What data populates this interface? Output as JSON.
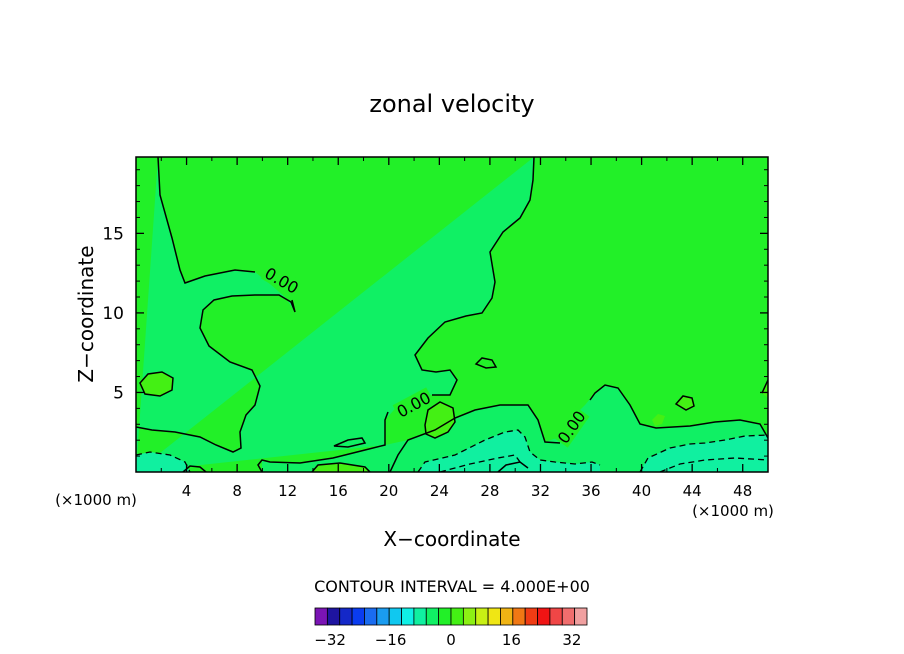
{
  "chart_data": {
    "type": "heatmap",
    "title": "zonal velocity",
    "xlabel": "X−coordinate",
    "ylabel": "Z−coordinate",
    "x_unit": "(×1000 m)",
    "z_unit": "(×1000 m)",
    "xlim": [
      0,
      50
    ],
    "ylim": [
      0,
      19.8
    ],
    "x_ticks": [
      4,
      8,
      12,
      16,
      20,
      24,
      28,
      32,
      36,
      40,
      44,
      48
    ],
    "x_tick_labels": [
      "4",
      "8",
      "12",
      "16",
      "20",
      "24",
      "28",
      "32",
      "36",
      "40",
      "44",
      "48"
    ],
    "y_ticks": [
      5,
      10,
      15
    ],
    "y_tick_labels": [
      "5",
      "10",
      "15"
    ],
    "contour_label": "0.00",
    "contour_label_positions": [
      {
        "x": 11.5,
        "z": 12.0
      },
      {
        "x": 22.0,
        "z": 4.2
      },
      {
        "x": 34.5,
        "z": 2.8
      }
    ],
    "contour_interval_text": "CONTOUR INTERVAL = 4.000E+00",
    "contour_interval": 4.0,
    "colorbar": {
      "range": [
        -36,
        36
      ],
      "step": 4,
      "colors": [
        "#7a14b4",
        "#1e14a0",
        "#1428c8",
        "#0a3cf0",
        "#1a6cf0",
        "#1a9cf0",
        "#10c8f0",
        "#10f0e6",
        "#10f0a0",
        "#10f064",
        "#22f028",
        "#44f014",
        "#8cf014",
        "#c8f014",
        "#f0e614",
        "#f0b414",
        "#f07814",
        "#f03c14",
        "#f01414",
        "#f04646",
        "#f06e6e",
        "#f0a0a0"
      ],
      "tick_values": [
        -32,
        -16,
        0,
        16,
        32
      ],
      "tick_labels": [
        "−32",
        "−16",
        "0",
        "16",
        "32"
      ]
    },
    "fill_colors": {
      "background_0_to_4": "#22f028",
      "band_0_to_minus4": "#10f064",
      "band_minus4_to_minus8": "#10f0a0",
      "patch_4_to_8": "#44f014"
    }
  }
}
